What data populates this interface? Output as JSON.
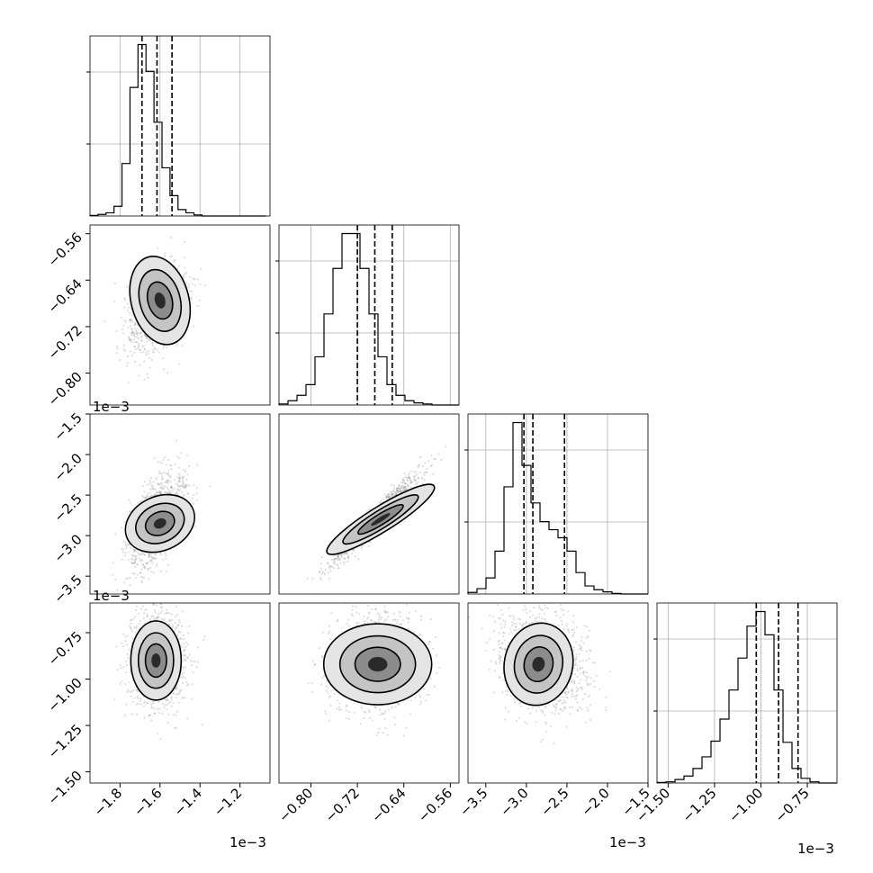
{
  "chart_data": [
    {
      "type": "histogram",
      "panel": "hist-0",
      "xlim": [
        -1.95,
        -1.05
      ],
      "quantiles": [
        -1.69,
        -1.615,
        -1.54
      ],
      "bins": {
        "start": -1.95,
        "width": 0.04,
        "counts": [
          1,
          3,
          6,
          18,
          98,
          240,
          320,
          270,
          175,
          90,
          38,
          12,
          6,
          2,
          0,
          0,
          0,
          0,
          0,
          0,
          0,
          0
        ]
      },
      "xticks": [
        "−1.8",
        "−1.6",
        "−1.4",
        "−1.2"
      ],
      "xtick_values": [
        -1.8,
        -1.6,
        -1.4,
        -1.2
      ],
      "offset_label": "1e−3",
      "grid": true
    },
    {
      "type": "histogram",
      "panel": "hist-1",
      "xlim": [
        -0.855,
        -0.545
      ],
      "quantiles": [
        -0.72,
        -0.69,
        -0.66
      ],
      "bins": {
        "start": -0.855,
        "width": 0.0155,
        "counts": [
          2,
          8,
          18,
          38,
          90,
          170,
          255,
          320,
          320,
          255,
          170,
          90,
          38,
          18,
          8,
          4,
          2,
          0,
          0,
          0
        ]
      },
      "xticks": [
        "−0.80",
        "−0.72",
        "−0.64",
        "−0.56"
      ],
      "xtick_values": [
        -0.8,
        -0.72,
        -0.64,
        -0.56
      ],
      "grid": true
    },
    {
      "type": "histogram",
      "panel": "hist-2",
      "xlim": [
        -3.72,
        -1.5
      ],
      "quantiles": [
        -3.03,
        -2.92,
        -2.53
      ],
      "bins": {
        "start": -3.72,
        "width": 0.111,
        "counts": [
          3,
          10,
          30,
          80,
          200,
          320,
          240,
          170,
          135,
          120,
          105,
          80,
          40,
          15,
          8,
          4,
          1,
          0,
          0,
          0
        ]
      },
      "xticks": [
        "−3.5",
        "−3.0",
        "−2.5",
        "−2.0",
        "−1.5"
      ],
      "xtick_values": [
        -3.5,
        -3.0,
        -2.5,
        -2.0,
        -1.5
      ],
      "offset_label": "1e−3",
      "grid": true
    },
    {
      "type": "histogram",
      "panel": "hist-3",
      "xlim": [
        -1.56,
        -0.59
      ],
      "quantiles": [
        -1.025,
        -0.905,
        -0.8
      ],
      "bins": {
        "start": -1.56,
        "width": 0.0485,
        "counts": [
          1,
          2,
          6,
          12,
          25,
          45,
          72,
          110,
          160,
          215,
          270,
          295,
          255,
          160,
          70,
          25,
          8,
          2,
          0,
          0
        ]
      },
      "xticks": [
        "−1.50",
        "−1.25",
        "−1.00",
        "−0.75"
      ],
      "xtick_values": [
        -1.5,
        -1.25,
        -1.0,
        -0.75
      ],
      "offset_label": "1e−3",
      "grid": true
    },
    {
      "type": "scatter",
      "panel": "2d-1-0",
      "xlim": [
        -1.95,
        -1.05
      ],
      "ylim": [
        -0.855,
        -0.545
      ],
      "yticks": [
        "−0.56",
        "−0.64",
        "−0.72",
        "−0.80"
      ],
      "ytick_values": [
        -0.56,
        -0.64,
        -0.72,
        -0.8
      ],
      "offset_label": "1e−3"
    },
    {
      "type": "scatter",
      "panel": "2d-2-0",
      "xlim": [
        -1.95,
        -1.05
      ],
      "ylim": [
        -3.72,
        -1.5
      ],
      "yticks": [
        "−1.5",
        "−2.0",
        "−2.5",
        "−3.0",
        "−3.5"
      ],
      "ytick_values": [
        -1.5,
        -2.0,
        -2.5,
        -3.0,
        -3.5
      ],
      "offset_label": "1e−3"
    },
    {
      "type": "scatter",
      "panel": "2d-2-1",
      "xlim": [
        -0.855,
        -0.545
      ],
      "ylim": [
        -3.72,
        -1.5
      ]
    },
    {
      "type": "scatter",
      "panel": "2d-3-0",
      "xlim": [
        -1.95,
        -1.05
      ],
      "ylim": [
        -1.56,
        -0.59
      ],
      "yticks": [
        "−0.75",
        "−1.00",
        "−1.25",
        "−1.50"
      ],
      "ytick_values": [
        -0.75,
        -1.0,
        -1.25,
        -1.5
      ]
    },
    {
      "type": "scatter",
      "panel": "2d-3-1",
      "xlim": [
        -0.855,
        -0.545
      ],
      "ylim": [
        -1.56,
        -0.59
      ]
    },
    {
      "type": "scatter",
      "panel": "2d-3-2",
      "xlim": [
        -3.72,
        -1.5
      ],
      "ylim": [
        -1.56,
        -0.59
      ]
    }
  ]
}
